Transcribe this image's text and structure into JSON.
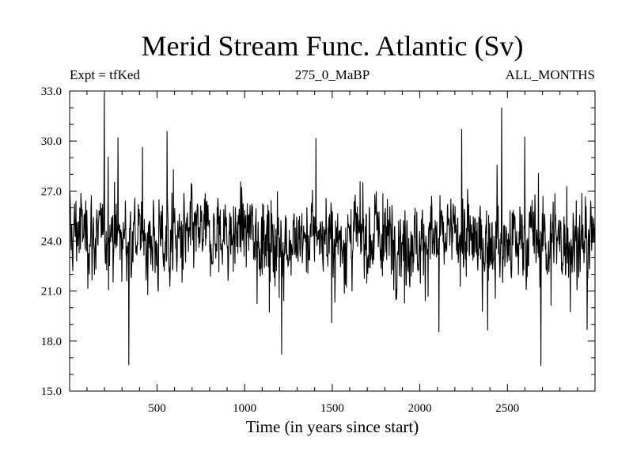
{
  "header": {
    "title": "Merid Stream Func. Atlantic (Sv)",
    "left": "Expt = tfKed",
    "center": "275_0_MaBP",
    "right": "ALL_MONTHS"
  },
  "chart_data": {
    "type": "line",
    "title": "Merid Stream Func. Atlantic (Sv)",
    "xlabel": "Time (in years since start)",
    "ylabel": "",
    "xlim": [
      1,
      3000
    ],
    "ylim": [
      15.0,
      33.0
    ],
    "xticks": [
      "500",
      "1000",
      "1500",
      "2000",
      "2500"
    ],
    "yticks": [
      "15.0",
      "18.0",
      "21.0",
      "24.0",
      "27.0",
      "30.0",
      "33.0"
    ],
    "grid": false,
    "legend": "none",
    "line_color": "#000000",
    "series": [
      {
        "x": [
          1,
          50,
          100,
          150,
          200,
          250,
          300,
          350,
          400,
          450,
          500,
          550,
          600,
          650,
          700,
          750,
          800,
          850,
          900,
          950,
          1000,
          1050,
          1100,
          1150,
          1200,
          1250,
          1300,
          1350,
          1400,
          1450,
          1500,
          1550,
          1600,
          1650,
          1700,
          1750,
          1800,
          1850,
          1900,
          1950,
          2000,
          2050,
          2100,
          2150,
          2200,
          2250,
          2300,
          2350,
          2400,
          2450,
          2500,
          2550,
          2600,
          2650,
          2700,
          2750,
          2800,
          2850,
          2900,
          2950,
          3000
        ],
        "y": [
          24.2,
          24.8,
          24.6,
          24.1,
          24.4,
          24.2,
          24.0,
          24.3,
          24.5,
          24.1,
          23.9,
          24.0,
          24.1,
          24.0,
          24.3,
          24.0,
          24.1,
          24.2,
          24.4,
          24.3,
          24.9,
          24.4,
          24.0,
          24.3,
          24.2,
          24.0,
          23.9,
          24.1,
          24.4,
          24.2,
          24.3,
          24.1,
          24.0,
          24.2,
          24.1,
          24.3,
          24.0,
          24.2,
          24.1,
          24.3,
          23.8,
          24.0,
          24.2,
          24.1,
          24.4,
          24.3,
          24.0,
          23.7,
          23.9,
          24.1,
          23.8,
          24.0,
          24.2,
          24.0,
          23.8,
          24.1,
          23.9,
          23.8,
          24.1,
          24.0,
          24.2
        ]
      }
    ]
  }
}
